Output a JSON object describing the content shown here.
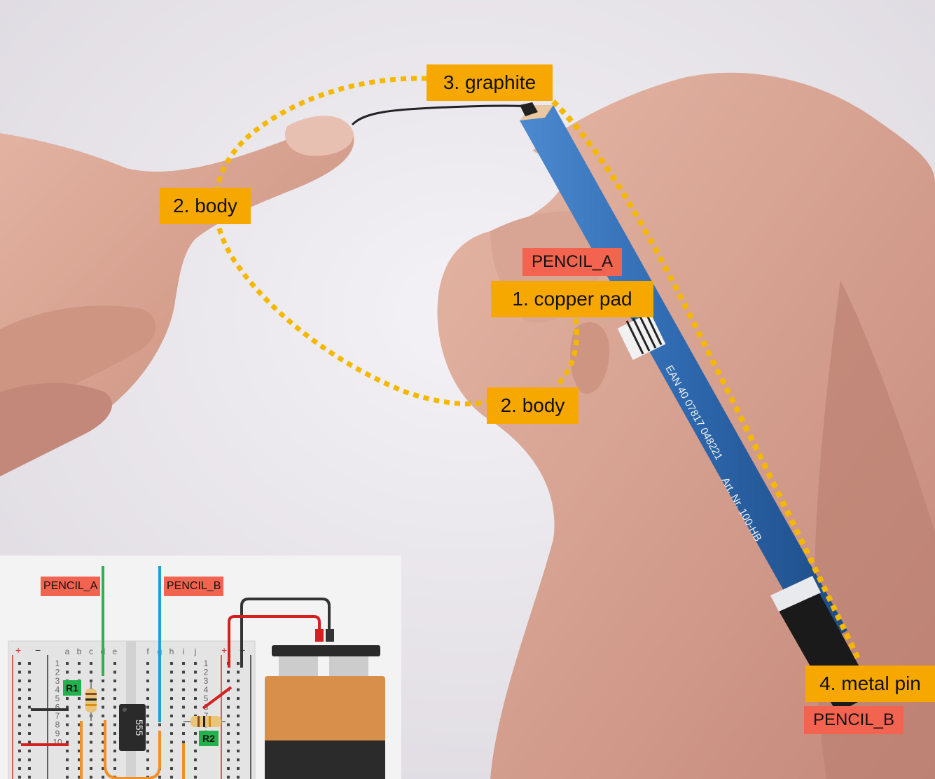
{
  "labels": {
    "graphite": "3. graphite",
    "body_left": "2. body",
    "body_bottom": "2. body",
    "copper_pad": "1. copper pad",
    "metal_pin": "4. metal pin",
    "pencil_a": "PENCIL_A",
    "pencil_b": "PENCIL_B"
  },
  "pencil": {
    "barcode_text": "EAN 40 07817 048221",
    "model_text": "Art. Nr. 100-HB"
  },
  "breadboard": {
    "pencil_a": "PENCIL_A",
    "pencil_b": "PENCIL_B",
    "r1": "R1",
    "r2": "R2",
    "chip": "555",
    "plus_left": "+",
    "minus_left": "−",
    "plus_right": "+",
    "minus_right": "−",
    "cols_left": [
      "a",
      "b",
      "c",
      "d",
      "e"
    ],
    "cols_right": [
      "f",
      "g",
      "h",
      "i",
      "j"
    ],
    "rows": [
      "1",
      "2",
      "3",
      "4",
      "5",
      "6",
      "7",
      "8",
      "9",
      "10"
    ]
  },
  "colors": {
    "label_orange": "#f7a800",
    "label_red": "#f26450",
    "dotted_loop": "#f5b800",
    "pencil_blue": "#2f6fb5",
    "wire_green": "#2fb14c",
    "wire_blue": "#1ea0d8"
  }
}
